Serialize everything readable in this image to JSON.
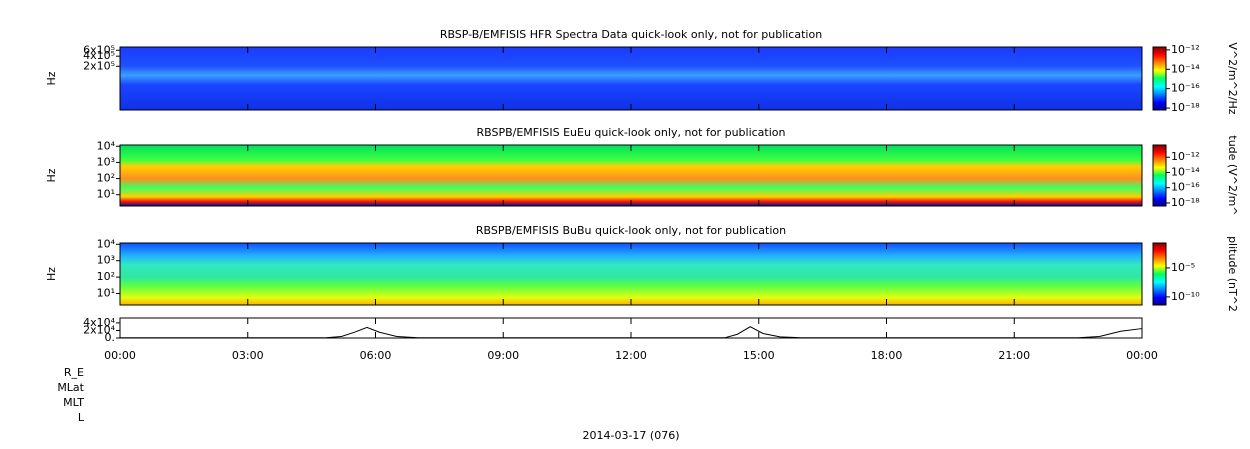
{
  "chart_data": [
    {
      "type": "spectrogram",
      "title": "RBSP-B/EMFISIS  HFR Spectra Data quick-look only, not for publication",
      "ylabel": "Hz",
      "ylog": true,
      "ylim": [
        10000,
        750000
      ],
      "yticks": [
        {
          "value": 200000,
          "label": "2x10⁵"
        },
        {
          "value": 400000,
          "label": "4x10⁵"
        },
        {
          "value": 600000,
          "label": "6x10⁵"
        }
      ],
      "zlabel": "V^2/m^2/Hz",
      "zlim": [
        -18.2,
        -11.7
      ],
      "zticks": [
        {
          "value": -12,
          "label": "10⁻¹²"
        },
        {
          "value": -14,
          "label": "10⁻¹⁴"
        },
        {
          "value": -16,
          "label": "10⁻¹⁶"
        },
        {
          "value": -18,
          "label": "10⁻¹⁸"
        }
      ]
    },
    {
      "type": "spectrogram",
      "title": "RBSPB/EMFISIS  EuEu quick-look only, not for publication",
      "ylabel": "Hz",
      "ylog": true,
      "ylim": [
        2,
        12000
      ],
      "yticks": [
        {
          "value": 10,
          "label": "10¹"
        },
        {
          "value": 100,
          "label": "10²"
        },
        {
          "value": 1000,
          "label": "10³"
        },
        {
          "value": 10000,
          "label": "10⁴"
        }
      ],
      "zlabel": "tude (V^2/m^",
      "zlim": [
        -18.4,
        -10.4
      ],
      "zticks": [
        {
          "value": -12,
          "label": "10⁻¹²"
        },
        {
          "value": -14,
          "label": "10⁻¹⁴"
        },
        {
          "value": -16,
          "label": "10⁻¹⁶"
        },
        {
          "value": -18,
          "label": "10⁻¹⁸"
        }
      ]
    },
    {
      "type": "spectrogram",
      "title": "RBSPB/EMFISIS  BuBu quick-look only, not for publication",
      "ylabel": "Hz",
      "ylog": true,
      "ylim": [
        2,
        12000
      ],
      "yticks": [
        {
          "value": 10,
          "label": "10¹"
        },
        {
          "value": 100,
          "label": "10²"
        },
        {
          "value": 1000,
          "label": "10³"
        },
        {
          "value": 10000,
          "label": "10⁴"
        }
      ],
      "zlabel": "plitude (nT^2",
      "zlim": [
        -11.4,
        -0.7
      ],
      "zticks": [
        {
          "value": -5,
          "label": "10⁻⁵"
        },
        {
          "value": -10,
          "label": "10⁻¹⁰"
        }
      ]
    },
    {
      "type": "line",
      "color": "#000000",
      "ylim": [
        0,
        53000
      ],
      "yticks": [
        {
          "value": 0,
          "label": "0."
        },
        {
          "value": 20000,
          "label": "2x10⁴"
        },
        {
          "value": 40000,
          "label": "4x10⁴"
        }
      ],
      "x": [
        0,
        4.8,
        5.2,
        5.5,
        5.8,
        6.1,
        6.5,
        7,
        14.2,
        14.5,
        14.8,
        15.1,
        15.5,
        16,
        22.5,
        23,
        23.5,
        24
      ],
      "values": [
        500,
        500,
        4000,
        15000,
        28000,
        15000,
        4000,
        500,
        500,
        10000,
        30000,
        12000,
        3000,
        500,
        500,
        4000,
        18000,
        25000
      ],
      "xlim": [
        0,
        24
      ],
      "xticks": [
        {
          "value": 0,
          "label": "00:00"
        },
        {
          "value": 3,
          "label": "03:00"
        },
        {
          "value": 6,
          "label": "06:00"
        },
        {
          "value": 9,
          "label": "09:00"
        },
        {
          "value": 12,
          "label": "12:00"
        },
        {
          "value": 15,
          "label": "15:00"
        },
        {
          "value": 18,
          "label": "18:00"
        },
        {
          "value": 21,
          "label": "21:00"
        },
        {
          "value": 24,
          "label": "00:00"
        }
      ],
      "row_labels": [
        "R_E",
        "MLat",
        "MLT",
        "L"
      ],
      "date": "2014-03-17 (076)"
    }
  ]
}
